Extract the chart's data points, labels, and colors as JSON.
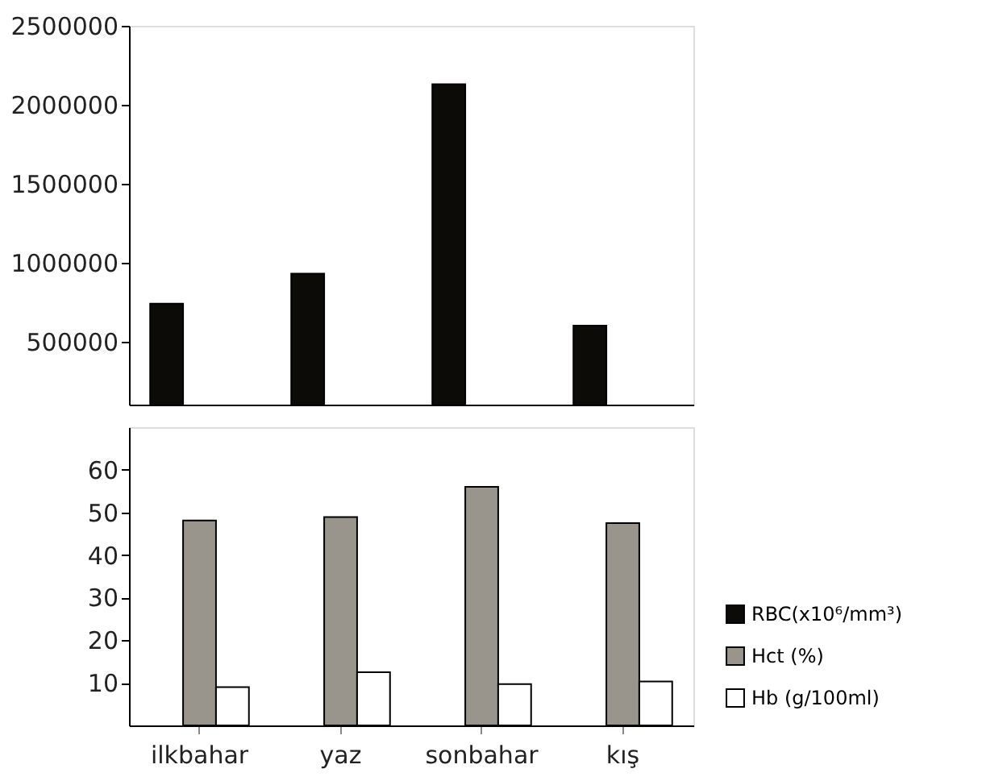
{
  "chart_data": [
    {
      "type": "bar",
      "categories": [
        null,
        null,
        null,
        null
      ],
      "series": [
        {
          "color": "#0d0b08",
          "values": [
            740000,
            930000,
            2130000,
            600000
          ]
        }
      ],
      "ylim": [
        100000,
        2500000
      ],
      "yticks": [
        500000,
        1000000,
        1500000,
        2000000,
        2500000
      ],
      "tick_labels": "y",
      "grid": false,
      "legend": false
    },
    {
      "type": "bar",
      "categories": [
        "ilkbahar",
        "yaz",
        "sonbahar",
        "kış"
      ],
      "series": [
        {
          "name": "RBC(x10⁶/mm³)",
          "color": "#0d0b08",
          "values": [
            null,
            null,
            null,
            null
          ]
        },
        {
          "name": "Hct (%)",
          "color": "#99948c",
          "values": [
            48.1,
            48.9,
            56,
            47.5
          ]
        },
        {
          "name": "Hb (g/100ml)",
          "color": "#ffffff",
          "values": [
            9,
            12.5,
            9.7,
            10.3
          ]
        }
      ],
      "ylim": [
        0,
        70
      ],
      "yticks": [
        10,
        20,
        30,
        40,
        50,
        60
      ],
      "grid": false,
      "legend": "bottom right"
    }
  ]
}
